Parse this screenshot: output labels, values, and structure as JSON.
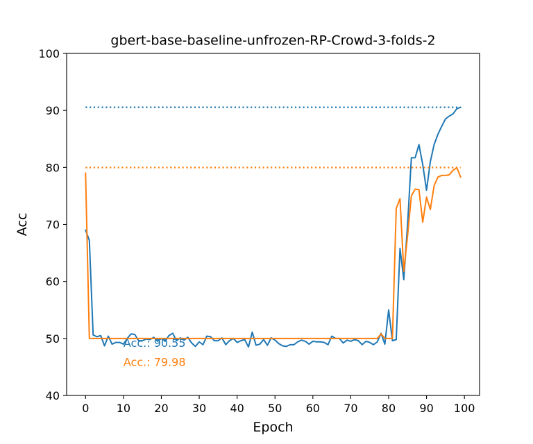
{
  "chart_data": {
    "type": "line",
    "title": "gbert-base-baseline-unfrozen-RP-Crowd-3-folds-2",
    "xlabel": "Epoch",
    "ylabel": "Acc",
    "xlim": [
      -5,
      104
    ],
    "ylim": [
      40,
      100
    ],
    "xticks": [
      0,
      10,
      20,
      30,
      40,
      50,
      60,
      70,
      80,
      90,
      100
    ],
    "yticks": [
      40,
      50,
      60,
      70,
      80,
      90,
      100
    ],
    "grid": false,
    "series": [
      {
        "color": "#1f77b4",
        "x": [
          0,
          1,
          2,
          3,
          4,
          5,
          6,
          7,
          8,
          9,
          10,
          11,
          12,
          13,
          14,
          15,
          16,
          17,
          18,
          19,
          20,
          21,
          22,
          23,
          24,
          25,
          26,
          27,
          28,
          29,
          30,
          31,
          32,
          33,
          34,
          35,
          36,
          37,
          38,
          39,
          40,
          41,
          42,
          43,
          44,
          45,
          46,
          47,
          48,
          49,
          50,
          51,
          52,
          53,
          54,
          55,
          56,
          57,
          58,
          59,
          60,
          61,
          62,
          63,
          64,
          65,
          66,
          67,
          68,
          69,
          70,
          71,
          72,
          73,
          74,
          75,
          76,
          77,
          78,
          79,
          80,
          81,
          82,
          83,
          84,
          85,
          86,
          87,
          88,
          89,
          90,
          91,
          92,
          93,
          94,
          95,
          96,
          97,
          98,
          99
        ],
        "values": [
          69.0,
          67.2,
          50.6,
          50.3,
          50.5,
          48.7,
          50.4,
          49.0,
          49.3,
          49.3,
          49.0,
          50.0,
          50.8,
          50.7,
          49.6,
          49.6,
          49.9,
          49.8,
          50.2,
          49.5,
          50.0,
          49.5,
          50.5,
          50.9,
          49.6,
          50.1,
          49.7,
          50.2,
          49.2,
          48.6,
          49.4,
          48.9,
          50.4,
          50.3,
          49.6,
          49.6,
          50.1,
          48.9,
          49.6,
          50.0,
          49.3,
          49.6,
          49.8,
          48.5,
          51.1,
          48.8,
          49.0,
          49.8,
          48.8,
          50.1,
          49.7,
          49.1,
          48.7,
          48.6,
          48.9,
          48.9,
          49.4,
          49.7,
          49.5,
          49.0,
          49.5,
          49.4,
          49.4,
          49.3,
          48.9,
          50.4,
          50.0,
          50.0,
          49.2,
          49.7,
          49.5,
          49.8,
          49.6,
          48.9,
          49.5,
          49.3,
          48.9,
          49.4,
          50.9,
          49.0,
          55.0,
          49.6,
          49.8,
          65.8,
          60.3,
          70.0,
          81.7,
          81.7,
          84.0,
          80.5,
          76.0,
          81.0,
          84.0,
          85.8,
          87.2,
          88.5,
          89.0,
          89.4,
          90.3,
          90.55
        ],
        "best_value": 90.55,
        "annotation": "Acc.: 90.55"
      },
      {
        "color": "#ff7f0e",
        "x": [
          0,
          1,
          2,
          3,
          4,
          5,
          6,
          7,
          8,
          9,
          10,
          11,
          12,
          13,
          14,
          15,
          16,
          17,
          18,
          19,
          20,
          21,
          22,
          23,
          24,
          25,
          26,
          27,
          28,
          29,
          30,
          31,
          32,
          33,
          34,
          35,
          36,
          37,
          38,
          39,
          40,
          41,
          42,
          43,
          44,
          45,
          46,
          47,
          48,
          49,
          50,
          51,
          52,
          53,
          54,
          55,
          56,
          57,
          58,
          59,
          60,
          61,
          62,
          63,
          64,
          65,
          66,
          67,
          68,
          69,
          70,
          71,
          72,
          73,
          74,
          75,
          76,
          77,
          78,
          79,
          80,
          81,
          82,
          83,
          84,
          85,
          86,
          87,
          88,
          89,
          90,
          91,
          92,
          93,
          94,
          95,
          96,
          97,
          98,
          99
        ],
        "values": [
          79.0,
          50.0,
          50.0,
          50.0,
          50.0,
          50.0,
          50.0,
          50.0,
          50.0,
          50.0,
          50.0,
          50.0,
          50.0,
          50.0,
          50.0,
          50.0,
          50.0,
          50.0,
          50.0,
          50.0,
          50.0,
          50.0,
          50.0,
          50.0,
          50.0,
          50.0,
          50.0,
          50.0,
          50.0,
          50.0,
          50.0,
          50.0,
          50.0,
          50.0,
          50.0,
          50.0,
          50.0,
          50.0,
          50.0,
          50.0,
          50.0,
          50.0,
          50.0,
          50.0,
          50.0,
          50.0,
          50.0,
          50.0,
          50.0,
          50.0,
          50.0,
          50.0,
          50.0,
          50.0,
          50.0,
          50.0,
          50.0,
          50.0,
          50.0,
          50.0,
          50.0,
          50.0,
          50.0,
          50.0,
          50.0,
          50.0,
          50.0,
          50.0,
          50.0,
          50.0,
          50.0,
          50.0,
          50.0,
          50.0,
          50.0,
          50.0,
          50.0,
          50.0,
          50.8,
          50.0,
          50.0,
          50.0,
          72.8,
          74.5,
          61.8,
          68.0,
          75.0,
          76.2,
          76.1,
          70.4,
          74.8,
          72.6,
          76.8,
          78.3,
          78.6,
          78.6,
          78.7,
          79.5,
          79.98,
          78.3
        ],
        "best_value": 79.98,
        "annotation": "Acc.: 79.98"
      }
    ],
    "annotation_anchor": [
      10,
      48.5,
      45.2
    ]
  }
}
